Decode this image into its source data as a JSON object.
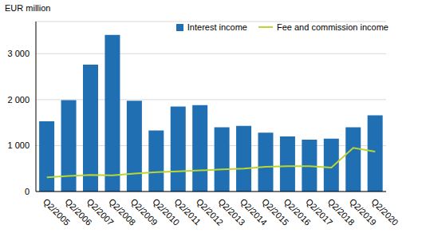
{
  "chart_data": {
    "type": "bar",
    "ylabel": "EUR million",
    "categories": [
      "Q2/2005",
      "Q2/2006",
      "Q2/2007",
      "Q2/2008",
      "Q2/2009",
      "Q2/2010",
      "Q2/2011",
      "Q2/2012",
      "Q2/2013",
      "Q2/2014",
      "Q2/2015",
      "Q2/2016",
      "Q2/2017",
      "Q2/2018",
      "Q2/2019",
      "Q2/2020"
    ],
    "series": [
      {
        "name": "Interest income",
        "type": "bar",
        "color": "#1f6fb2",
        "values": [
          1530,
          1990,
          2760,
          3410,
          1975,
          1330,
          1850,
          1880,
          1400,
          1430,
          1280,
          1200,
          1130,
          1150,
          1400,
          1660
        ]
      },
      {
        "name": "Fee and commission income",
        "type": "line",
        "color": "#bcd631",
        "values": [
          310,
          340,
          360,
          350,
          390,
          420,
          440,
          460,
          480,
          500,
          540,
          550,
          550,
          520,
          950,
          870
        ]
      }
    ],
    "ylim": [
      0,
      3700
    ],
    "yticks": [
      0,
      {
        "value": 1000,
        "label": "1 000"
      },
      {
        "value": 2000,
        "label": "2 000"
      },
      {
        "value": 3000,
        "label": "3 000"
      }
    ],
    "grid": true,
    "legend": "top-right"
  }
}
